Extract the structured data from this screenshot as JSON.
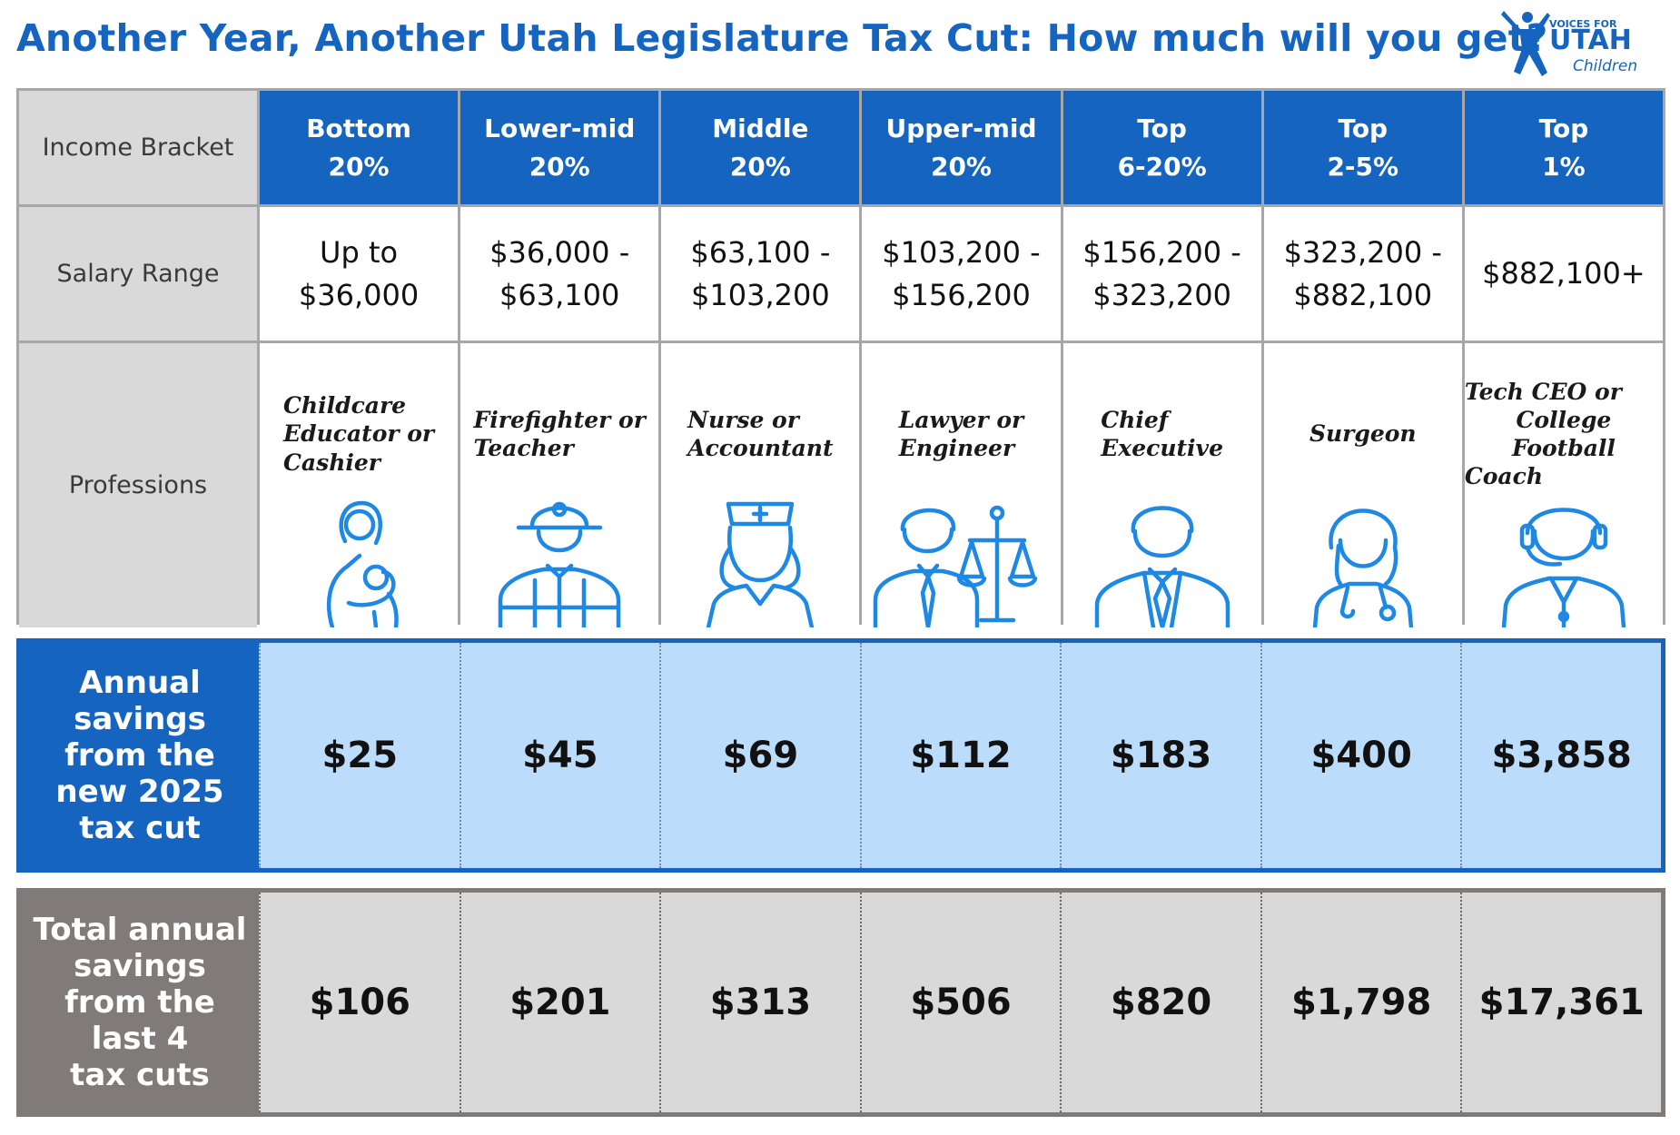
{
  "title": "Another Year, Another Utah Legislature Tax Cut:  How much will you get?",
  "logo": {
    "line1": "VOICES FOR",
    "line2": "UTAH",
    "line3": "Children"
  },
  "row_labels": {
    "income": "Income Bracket",
    "salary": "Salary Range",
    "professions": "Professions"
  },
  "brackets": [
    {
      "l1": "Bottom",
      "l2": "20%",
      "s1": "Up to",
      "s2": "$36,000",
      "p1": "Childcare",
      "p2": "Educator or",
      "p3": "Cashier",
      "icon": "mother-baby-icon",
      "annual": "$25",
      "total": "$106"
    },
    {
      "l1": "Lower-mid",
      "l2": "20%",
      "s1": "$36,000 -",
      "s2": "$63,100",
      "p1": "Firefighter or",
      "p2": "Teacher",
      "p3": "",
      "icon": "firefighter-icon",
      "annual": "$45",
      "total": "$201"
    },
    {
      "l1": "Middle",
      "l2": "20%",
      "s1": "$63,100 -",
      "s2": "$103,200",
      "p1": "Nurse or",
      "p2": "Accountant",
      "p3": "",
      "icon": "nurse-icon",
      "annual": "$69",
      "total": "$313"
    },
    {
      "l1": "Upper-mid",
      "l2": "20%",
      "s1": "$103,200 -",
      "s2": "$156,200",
      "p1": "Lawyer or",
      "p2": "Engineer",
      "p3": "",
      "icon": "lawyer-scales-icon",
      "annual": "$112",
      "total": "$506"
    },
    {
      "l1": "Top",
      "l2": "6-20%",
      "s1": "$156,200 -",
      "s2": "$323,200",
      "p1": "Chief",
      "p2": "Executive",
      "p3": "",
      "icon": "executive-icon",
      "annual": "$183",
      "total": "$820"
    },
    {
      "l1": "Top",
      "l2": "2-5%",
      "s1": "$323,200 -",
      "s2": "$882,100",
      "p1": "Surgeon",
      "p2": "",
      "p3": "",
      "icon": "surgeon-icon",
      "annual": "$400",
      "total": "$1,798"
    },
    {
      "l1": "Top",
      "l2": "1%",
      "s1": "$882,100+",
      "s2": "",
      "p1": "Tech CEO or",
      "p2": "College Football",
      "p3": "Coach",
      "icon": "headset-coach-icon",
      "annual": "$3,858",
      "total": "$17,361"
    }
  ],
  "annual_label": [
    "Annual",
    "savings",
    "from the",
    "new 2025",
    "tax cut"
  ],
  "total_label": [
    "Total annual",
    "savings",
    "from the",
    "last 4",
    "tax cuts"
  ],
  "colors": {
    "primary_blue": "#1565c0",
    "light_blue": "#bcdcfb",
    "gray_band": "#807a7a",
    "light_gray": "#d9d9d9"
  }
}
